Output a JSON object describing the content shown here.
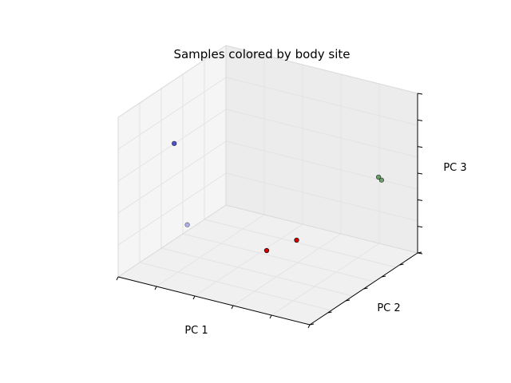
{
  "chart_data": {
    "type": "scatter",
    "projection": "3d",
    "title": "Samples colored by body site",
    "xlabel": "PC 1",
    "ylabel": "PC 2",
    "zlabel": "PC 3",
    "grid": true,
    "tick_labels_shown": false,
    "pane_color": "#f2f2f2",
    "grid_color": "#e3e3e3",
    "points": [
      {
        "x": 0.18,
        "y": 0.2,
        "z": 0.8,
        "color": "#4040c8",
        "alpha": 0.9
      },
      {
        "x": 0.22,
        "y": 0.25,
        "z": 0.28,
        "color": "#8080e0",
        "alpha": 0.6
      },
      {
        "x": 0.55,
        "y": 0.4,
        "z": 0.15,
        "color": "#d40000",
        "alpha": 1.0
      },
      {
        "x": 0.65,
        "y": 0.5,
        "z": 0.2,
        "color": "#d40000",
        "alpha": 1.0
      },
      {
        "x": 0.92,
        "y": 0.78,
        "z": 0.55,
        "color": "#4a8f4a",
        "alpha": 0.8
      },
      {
        "x": 0.93,
        "y": 0.79,
        "z": 0.53,
        "color": "#4a8f4a",
        "alpha": 0.8
      }
    ]
  }
}
